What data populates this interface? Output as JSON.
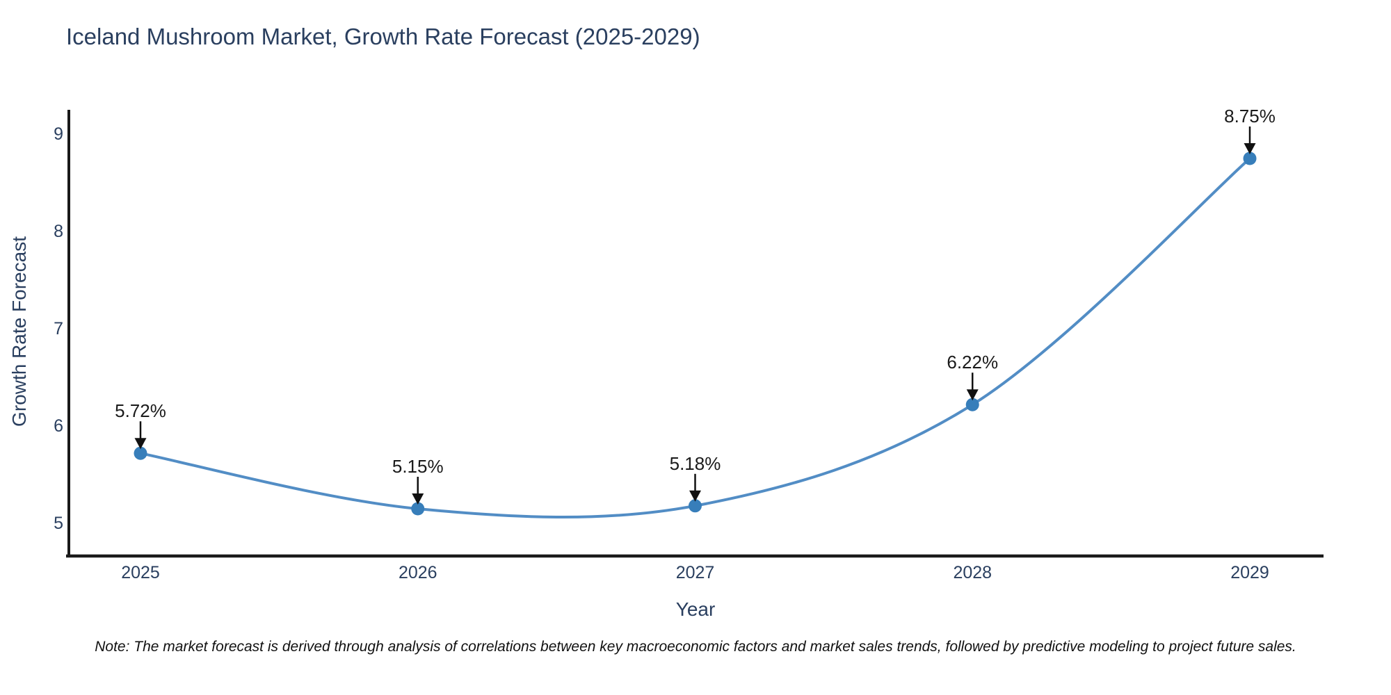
{
  "figure": {
    "note": "Note: The market forecast is derived through analysis of correlations between key macroeconomic factors and market sales trends, followed by predictive modeling to project future sales."
  },
  "chart_data": {
    "type": "line",
    "title": "Iceland Mushroom Market, Growth Rate Forecast (2025-2029)",
    "xlabel": "Year",
    "ylabel": "Growth Rate Forecast",
    "x": [
      2025,
      2026,
      2027,
      2028,
      2029
    ],
    "categories": [
      "2025",
      "2026",
      "2027",
      "2028",
      "2029"
    ],
    "yticks": [
      "5",
      "6",
      "7",
      "8",
      "9"
    ],
    "series": [
      {
        "name": "Growth Rate Forecast",
        "values": [
          5.72,
          5.15,
          5.18,
          6.22,
          8.75
        ],
        "labels": [
          "5.72%",
          "5.15%",
          "5.18%",
          "6.22%",
          "8.75%"
        ]
      }
    ],
    "ylim": [
      4.65,
      9.25
    ],
    "xlim": [
      2024.73,
      2029.27
    ],
    "line_shape": "spline",
    "grid": false,
    "legend_position": "none",
    "colors": {
      "line": "#3f81bf",
      "marker": "#377eba",
      "axis": "#1a1a1a",
      "arrow": "#111111",
      "text": "#2a3f5f"
    }
  }
}
